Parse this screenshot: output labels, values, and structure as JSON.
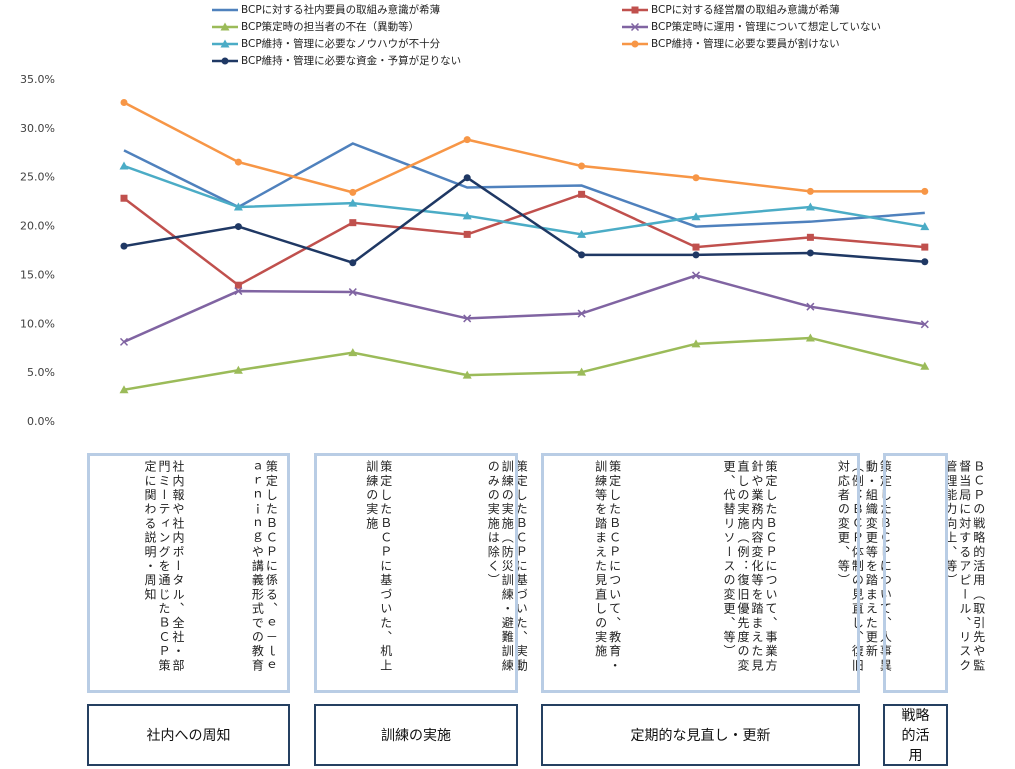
{
  "chart_data": {
    "type": "line",
    "categories": [
      "社内報や社内ポータル、全社・部門ミーティングを通じたＢＣＰ策定に関わる説明・周知",
      "策定したＢＣＰに係る、ｅ－ｌｅａｒｎｉｎｇや講義形式での教育",
      "策定したＢＣＰに基づいた、机上訓練の実施",
      "策定したＢＣＰに基づいた、実動訓練の実施（防災訓練・避難訓練のみの実施は除く）",
      "策定したＢＣＰについて、教育・訓練等を踏まえた見直しの実施",
      "策定したＢＣＰについて、事業方針や業務内容変化等を踏まえた見直しの実施（例：復旧優先度の変更、代替リソースの変更、等）",
      "策定したＢＣＰについて、人事異動・組織変更等を踏まえた更新（例：ＢＣＰ体制の見直し、復旧対応者の変更、等）",
      "ＢＣＰの戦略的活用（取引先や監督当局に対するアピール、リスク管理能力向上、等）"
    ],
    "group_labels": [
      "社内への周知",
      "訓練の実施",
      "定期的な見直し・更新",
      "戦略的活用"
    ],
    "series": [
      {
        "name": "BCPに対する社内要員の取組み意識が希薄",
        "color": "#4f81bd",
        "marker": "none",
        "values": [
          27.8,
          22.0,
          28.5,
          24.0,
          24.2,
          20.0,
          20.5,
          21.4
        ]
      },
      {
        "name": "BCPに対する経営層の取組み意識が希薄",
        "color": "#c0504d",
        "marker": "square",
        "values": [
          22.9,
          14.0,
          20.4,
          19.2,
          23.3,
          17.9,
          18.9,
          17.9
        ]
      },
      {
        "name": "BCP策定時の担当者の不在（異動等）",
        "color": "#9bbb59",
        "marker": "triangle",
        "values": [
          3.3,
          5.3,
          7.1,
          4.8,
          5.1,
          8.0,
          8.6,
          5.7
        ]
      },
      {
        "name": "BCP策定時に運用・管理について想定していない",
        "color": "#8064a2",
        "marker": "x",
        "values": [
          8.2,
          13.4,
          13.3,
          10.6,
          11.1,
          15.0,
          11.8,
          10.0
        ]
      },
      {
        "name": "BCP維持・管理に必要なノウハウが不十分",
        "color": "#4bacc6",
        "marker": "triangle",
        "values": [
          26.2,
          22.0,
          22.4,
          21.1,
          19.2,
          21.0,
          22.0,
          20.0
        ]
      },
      {
        "name": "BCP維持・管理に必要な要員が割けない",
        "color": "#f79646",
        "marker": "circle",
        "values": [
          32.7,
          26.6,
          23.5,
          28.9,
          26.2,
          25.0,
          23.6,
          23.6
        ]
      },
      {
        "name": "BCP維持・管理に必要な資金・予算が足りない",
        "color": "#1f3864",
        "marker": "circle",
        "values": [
          18.0,
          20.0,
          16.3,
          25.0,
          17.1,
          17.1,
          17.3,
          16.4
        ]
      }
    ],
    "ylim": [
      0,
      35
    ],
    "yticks": [
      {
        "value": 0,
        "label": "0.0%"
      },
      {
        "value": 5,
        "label": "5.0%"
      },
      {
        "value": 10,
        "label": "10.0%"
      },
      {
        "value": 15,
        "label": "15.0%"
      },
      {
        "value": 20,
        "label": "20.0%"
      },
      {
        "value": 25,
        "label": "25.0%"
      },
      {
        "value": 30,
        "label": "30.0%"
      },
      {
        "value": 35,
        "label": "35.0%"
      }
    ],
    "grid": false,
    "legend": "top"
  }
}
